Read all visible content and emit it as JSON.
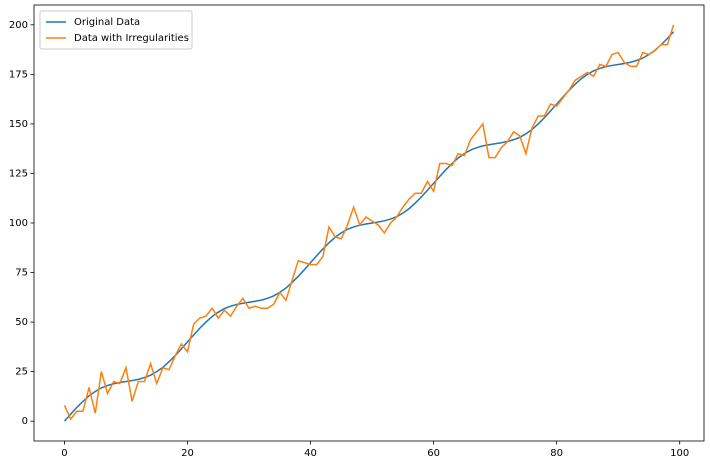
{
  "chart_data": {
    "type": "line",
    "x": [
      0,
      1,
      2,
      3,
      4,
      5,
      6,
      7,
      8,
      9,
      10,
      11,
      12,
      13,
      14,
      15,
      16,
      17,
      18,
      19,
      20,
      21,
      22,
      23,
      24,
      25,
      26,
      27,
      28,
      29,
      30,
      31,
      32,
      33,
      34,
      35,
      36,
      37,
      38,
      39,
      40,
      41,
      42,
      43,
      44,
      45,
      46,
      47,
      48,
      49,
      50,
      51,
      52,
      53,
      54,
      55,
      56,
      57,
      58,
      59,
      60,
      61,
      62,
      63,
      64,
      65,
      66,
      67,
      68,
      69,
      70,
      71,
      72,
      73,
      74,
      75,
      76,
      77,
      78,
      79,
      80,
      81,
      82,
      83,
      84,
      85,
      86,
      87,
      88,
      89,
      90,
      91,
      92,
      93,
      94,
      95,
      96,
      97,
      98,
      99
    ],
    "series": [
      {
        "name": "Original Data",
        "color": "#1f77b4",
        "values": [
          0,
          3.5,
          6.9,
          10,
          12.8,
          15,
          16.8,
          18,
          18.9,
          19.5,
          20,
          20.5,
          21.1,
          22,
          23.2,
          25,
          27.2,
          30,
          33.1,
          36.5,
          40,
          43.5,
          46.9,
          50,
          52.8,
          55,
          56.8,
          58,
          58.9,
          59.5,
          60,
          60.5,
          61.1,
          62,
          63.2,
          65,
          67.2,
          70,
          73.1,
          76.5,
          80,
          83.5,
          86.9,
          90,
          92.8,
          95,
          96.8,
          98,
          98.9,
          99.5,
          100,
          100.5,
          101.1,
          102,
          103.2,
          105,
          107.2,
          110,
          113.1,
          116.5,
          120,
          123.5,
          126.9,
          130,
          132.8,
          135,
          136.8,
          138,
          138.9,
          139.5,
          140,
          140.5,
          141.1,
          142,
          143.2,
          145,
          147.2,
          150,
          153.1,
          156.5,
          160,
          163.5,
          166.9,
          170,
          172.8,
          175,
          176.8,
          178,
          178.9,
          179.5,
          180,
          180.5,
          181.1,
          182,
          183.2,
          185,
          187.2,
          190,
          193.1,
          196.5
        ]
      },
      {
        "name": "Data with Irregularities",
        "color": "#ff7f0e",
        "values": [
          8,
          1,
          5,
          5,
          17,
          4,
          25,
          14,
          20,
          19,
          27,
          10,
          20,
          20,
          29,
          19,
          27,
          26,
          33,
          39,
          35,
          49,
          52,
          53,
          57,
          52,
          56,
          53,
          58,
          62,
          57,
          58,
          57,
          57,
          59,
          65,
          61,
          71,
          81,
          80,
          79,
          79,
          83,
          98,
          93,
          92,
          99,
          108,
          99,
          103,
          101,
          99,
          95,
          100,
          103,
          108,
          112,
          115,
          115,
          121,
          116,
          130,
          130,
          129,
          135,
          134,
          142,
          146,
          150,
          133,
          133,
          138,
          141,
          146,
          144,
          135,
          148,
          154,
          154,
          160,
          159,
          163,
          167,
          172,
          174,
          176,
          174,
          180,
          179,
          185,
          186,
          181,
          179,
          179,
          186,
          185,
          187,
          190,
          190,
          200
        ]
      }
    ],
    "xlim": [
      -4.95,
      103.95
    ],
    "ylim": [
      -10,
      210
    ],
    "xticks": [
      0,
      20,
      40,
      60,
      80,
      100
    ],
    "yticks": [
      0,
      25,
      50,
      75,
      100,
      125,
      150,
      175,
      200
    ],
    "grid": false,
    "legend": "upper left"
  }
}
